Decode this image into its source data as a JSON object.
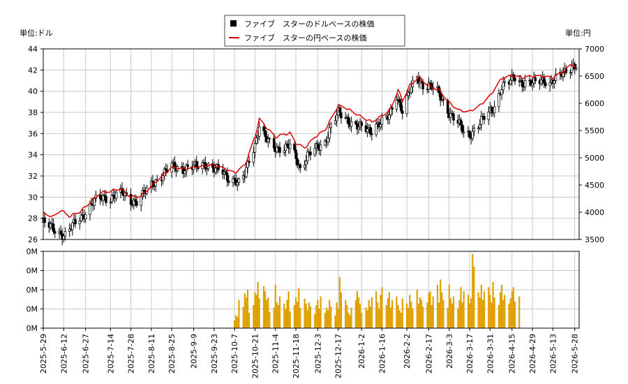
{
  "chart_data": [
    {
      "type": "candlestick",
      "unit_left_label": "単位:ドル",
      "unit_right_label": "単位:円",
      "legend": [
        {
          "label": "ファイブ　スターのドルベースの株価",
          "color": "#000000",
          "marker": "square"
        },
        {
          "label": "ファイブ　スターの円ベースの株価",
          "color": "#dd0000",
          "marker": "line"
        }
      ],
      "y_left": {
        "range": [
          26,
          44
        ],
        "ticks": [
          "26",
          "28",
          "30",
          "32",
          "34",
          "36",
          "38",
          "40",
          "42",
          "44"
        ]
      },
      "y_right": {
        "range": [
          3500,
          7000
        ],
        "ticks": [
          "3500",
          "4000",
          "4500",
          "5000",
          "5500",
          "6000",
          "6500",
          "7000"
        ]
      },
      "x_range": [
        "2025-05-29",
        "2026-05-31"
      ],
      "x_ticks": [
        "2025-5-29",
        "2025-6-12",
        "2025-6-27",
        "2025-7-14",
        "2025-7-28",
        "2025-8-11",
        "2025-8-25",
        "2025-9-9",
        "2025-9-23",
        "2025-10-7",
        "2025-10-21",
        "2025-11-4",
        "2025-11-18",
        "2025-12-3",
        "2025-12-17",
        "2026-1-2",
        "2026-1-16",
        "2026-2-2",
        "2026-2-17",
        "2026-3-3",
        "2026-3-17",
        "2026-3-31",
        "2026-4-15",
        "2026-4-29",
        "2026-5-13",
        "2026-5-28"
      ],
      "usd_price_series": [
        [
          "2025-05-29",
          27.6
        ],
        [
          "2025-06-05",
          27.0
        ],
        [
          "2025-06-10",
          26.6
        ],
        [
          "2025-06-13",
          26.4
        ],
        [
          "2025-06-20",
          27.6
        ],
        [
          "2025-06-27",
          28.6
        ],
        [
          "2025-07-03",
          29.6
        ],
        [
          "2025-07-09",
          30.0
        ],
        [
          "2025-07-14",
          29.9
        ],
        [
          "2025-07-18",
          30.3
        ],
        [
          "2025-07-23",
          30.3
        ],
        [
          "2025-07-28",
          29.7
        ],
        [
          "2025-08-01",
          29.6
        ],
        [
          "2025-08-06",
          30.3
        ],
        [
          "2025-08-11",
          31.2
        ],
        [
          "2025-08-18",
          32.0
        ],
        [
          "2025-08-25",
          32.9
        ],
        [
          "2025-09-02",
          32.7
        ],
        [
          "2025-09-09",
          32.8
        ],
        [
          "2025-09-16",
          33.2
        ],
        [
          "2025-09-23",
          32.6
        ],
        [
          "2025-09-29",
          32.4
        ],
        [
          "2025-10-03",
          31.8
        ],
        [
          "2025-10-07",
          31.6
        ],
        [
          "2025-10-10",
          31.2
        ],
        [
          "2025-10-14",
          32.1
        ],
        [
          "2025-10-17",
          33.6
        ],
        [
          "2025-10-21",
          35.0
        ],
        [
          "2025-10-24",
          36.7
        ],
        [
          "2025-10-28",
          35.5
        ],
        [
          "2025-11-04",
          34.7
        ],
        [
          "2025-11-10",
          34.6
        ],
        [
          "2025-11-14",
          34.8
        ],
        [
          "2025-11-18",
          33.7
        ],
        [
          "2025-11-21",
          32.7
        ],
        [
          "2025-11-26",
          34.0
        ],
        [
          "2025-12-03",
          34.6
        ],
        [
          "2025-12-08",
          35.2
        ],
        [
          "2025-12-12",
          36.8
        ],
        [
          "2025-12-17",
          37.9
        ],
        [
          "2025-12-22",
          37.4
        ],
        [
          "2026-01-02",
          36.5
        ],
        [
          "2026-01-08",
          36.2
        ],
        [
          "2026-01-12",
          36.9
        ],
        [
          "2026-01-16",
          37.1
        ],
        [
          "2026-01-21",
          37.6
        ],
        [
          "2026-01-26",
          39.6
        ],
        [
          "2026-01-30",
          38.2
        ],
        [
          "2026-02-04",
          40.0
        ],
        [
          "2026-02-09",
          41.3
        ],
        [
          "2026-02-13",
          40.6
        ],
        [
          "2026-02-17",
          40.6
        ],
        [
          "2026-02-23",
          39.9
        ],
        [
          "2026-03-03",
          38.0
        ],
        [
          "2026-03-09",
          37.0
        ],
        [
          "2026-03-13",
          36.1
        ],
        [
          "2026-03-17",
          35.9
        ],
        [
          "2026-03-24",
          37.0
        ],
        [
          "2026-03-31",
          38.1
        ],
        [
          "2026-04-03",
          38.6
        ],
        [
          "2026-04-08",
          40.4
        ],
        [
          "2026-04-13",
          40.8
        ],
        [
          "2026-04-17",
          41.4
        ],
        [
          "2026-04-22",
          40.8
        ],
        [
          "2026-04-29",
          40.7
        ],
        [
          "2026-05-06",
          41.2
        ],
        [
          "2026-05-11",
          40.7
        ],
        [
          "2026-05-15",
          41.1
        ],
        [
          "2026-05-20",
          41.8
        ],
        [
          "2026-05-26",
          42.4
        ],
        [
          "2026-05-29",
          42.3
        ]
      ],
      "jpy_price_series": [
        [
          "2025-05-29",
          3970
        ],
        [
          "2025-06-05",
          3920
        ],
        [
          "2025-06-10",
          4040
        ],
        [
          "2025-06-16",
          3930
        ],
        [
          "2025-06-23",
          4010
        ],
        [
          "2025-06-30",
          4180
        ],
        [
          "2025-07-07",
          4360
        ],
        [
          "2025-07-14",
          4390
        ],
        [
          "2025-07-21",
          4440
        ],
        [
          "2025-07-28",
          4280
        ],
        [
          "2025-08-04",
          4300
        ],
        [
          "2025-08-11",
          4480
        ],
        [
          "2025-08-18",
          4660
        ],
        [
          "2025-08-25",
          4830
        ],
        [
          "2025-09-02",
          4800
        ],
        [
          "2025-09-09",
          4820
        ],
        [
          "2025-09-16",
          4850
        ],
        [
          "2025-09-23",
          4870
        ],
        [
          "2025-09-30",
          4800
        ],
        [
          "2025-10-07",
          4720
        ],
        [
          "2025-10-14",
          4860
        ],
        [
          "2025-10-21",
          5380
        ],
        [
          "2025-10-24",
          5710
        ],
        [
          "2025-10-28",
          5580
        ],
        [
          "2025-11-04",
          5380
        ],
        [
          "2025-11-10",
          5430
        ],
        [
          "2025-11-14",
          5450
        ],
        [
          "2025-11-18",
          5270
        ],
        [
          "2025-11-24",
          5180
        ],
        [
          "2025-12-01",
          5380
        ],
        [
          "2025-12-08",
          5510
        ],
        [
          "2025-12-12",
          5710
        ],
        [
          "2025-12-17",
          5960
        ],
        [
          "2025-12-22",
          5920
        ],
        [
          "2026-01-02",
          5750
        ],
        [
          "2026-01-09",
          5660
        ],
        [
          "2026-01-16",
          5770
        ],
        [
          "2026-01-22",
          5900
        ],
        [
          "2026-01-27",
          6250
        ],
        [
          "2026-01-30",
          6050
        ],
        [
          "2026-02-04",
          6330
        ],
        [
          "2026-02-10",
          6480
        ],
        [
          "2026-02-17",
          6320
        ],
        [
          "2026-02-24",
          6250
        ],
        [
          "2026-03-03",
          6010
        ],
        [
          "2026-03-10",
          5870
        ],
        [
          "2026-03-17",
          5850
        ],
        [
          "2026-03-24",
          5960
        ],
        [
          "2026-03-31",
          6140
        ],
        [
          "2026-04-08",
          6460
        ],
        [
          "2026-04-15",
          6510
        ],
        [
          "2026-04-22",
          6470
        ],
        [
          "2026-04-29",
          6500
        ],
        [
          "2026-05-06",
          6490
        ],
        [
          "2026-05-13",
          6470
        ],
        [
          "2026-05-20",
          6580
        ],
        [
          "2026-05-26",
          6720
        ],
        [
          "2026-05-29",
          6660
        ]
      ]
    },
    {
      "type": "bar",
      "series_name": "volume",
      "color": "#e0a000",
      "y_ticks": [
        "0M",
        "0M",
        "0M",
        "0M",
        "0M"
      ],
      "volume_start_date": "2025-10-07",
      "volume_values": [
        0.15,
        0.25,
        0.22,
        0.55,
        0.42,
        0.68,
        0.6,
        0.75,
        0.3,
        0.45,
        0.7,
        0.65,
        0.9,
        0.58,
        0.82,
        0.72,
        0.55,
        0.6,
        0.32,
        0.4,
        0.85,
        0.5,
        0.45,
        0.62,
        0.48,
        0.38,
        0.55,
        0.72,
        0.33,
        0.45,
        0.6,
        0.52,
        0.78,
        0.4,
        0.58,
        0.48,
        0.35,
        0.5,
        0.42,
        0.28,
        0.45,
        0.55,
        0.38,
        0.62,
        0.3,
        0.4,
        0.35,
        0.55,
        0.42,
        0.25,
        0.5,
        0.38,
        1.0,
        0.7,
        0.55,
        0.45,
        0.3,
        0.25,
        0.4,
        0.55,
        0.72,
        0.6,
        0.48,
        0.3,
        0.4,
        0.35,
        0.55,
        0.42,
        0.6,
        0.72,
        0.5,
        0.38,
        0.65,
        0.8,
        0.45,
        0.58,
        0.7,
        0.4,
        0.55,
        0.62,
        0.45,
        0.35,
        0.3,
        0.58,
        0.48,
        0.4,
        0.65,
        0.52,
        0.38,
        0.75,
        0.48,
        0.6,
        0.55,
        0.42,
        0.5,
        0.68,
        0.72,
        0.45,
        0.62,
        0.85,
        0.5,
        0.95,
        0.7,
        0.55,
        0.4,
        0.85,
        0.58,
        0.48,
        0.62,
        0.38,
        0.55,
        0.8,
        0.5,
        0.72,
        0.65,
        0.48,
        0.58,
        1.45,
        1.2,
        0.7,
        0.6,
        0.85,
        0.55,
        0.72,
        0.8,
        0.65,
        0.5,
        0.9,
        0.6,
        0.45,
        0.7,
        0.85,
        0.55,
        0.65,
        0.48,
        0.58,
        0.72,
        0.8,
        0.52,
        0.62
      ]
    }
  ]
}
